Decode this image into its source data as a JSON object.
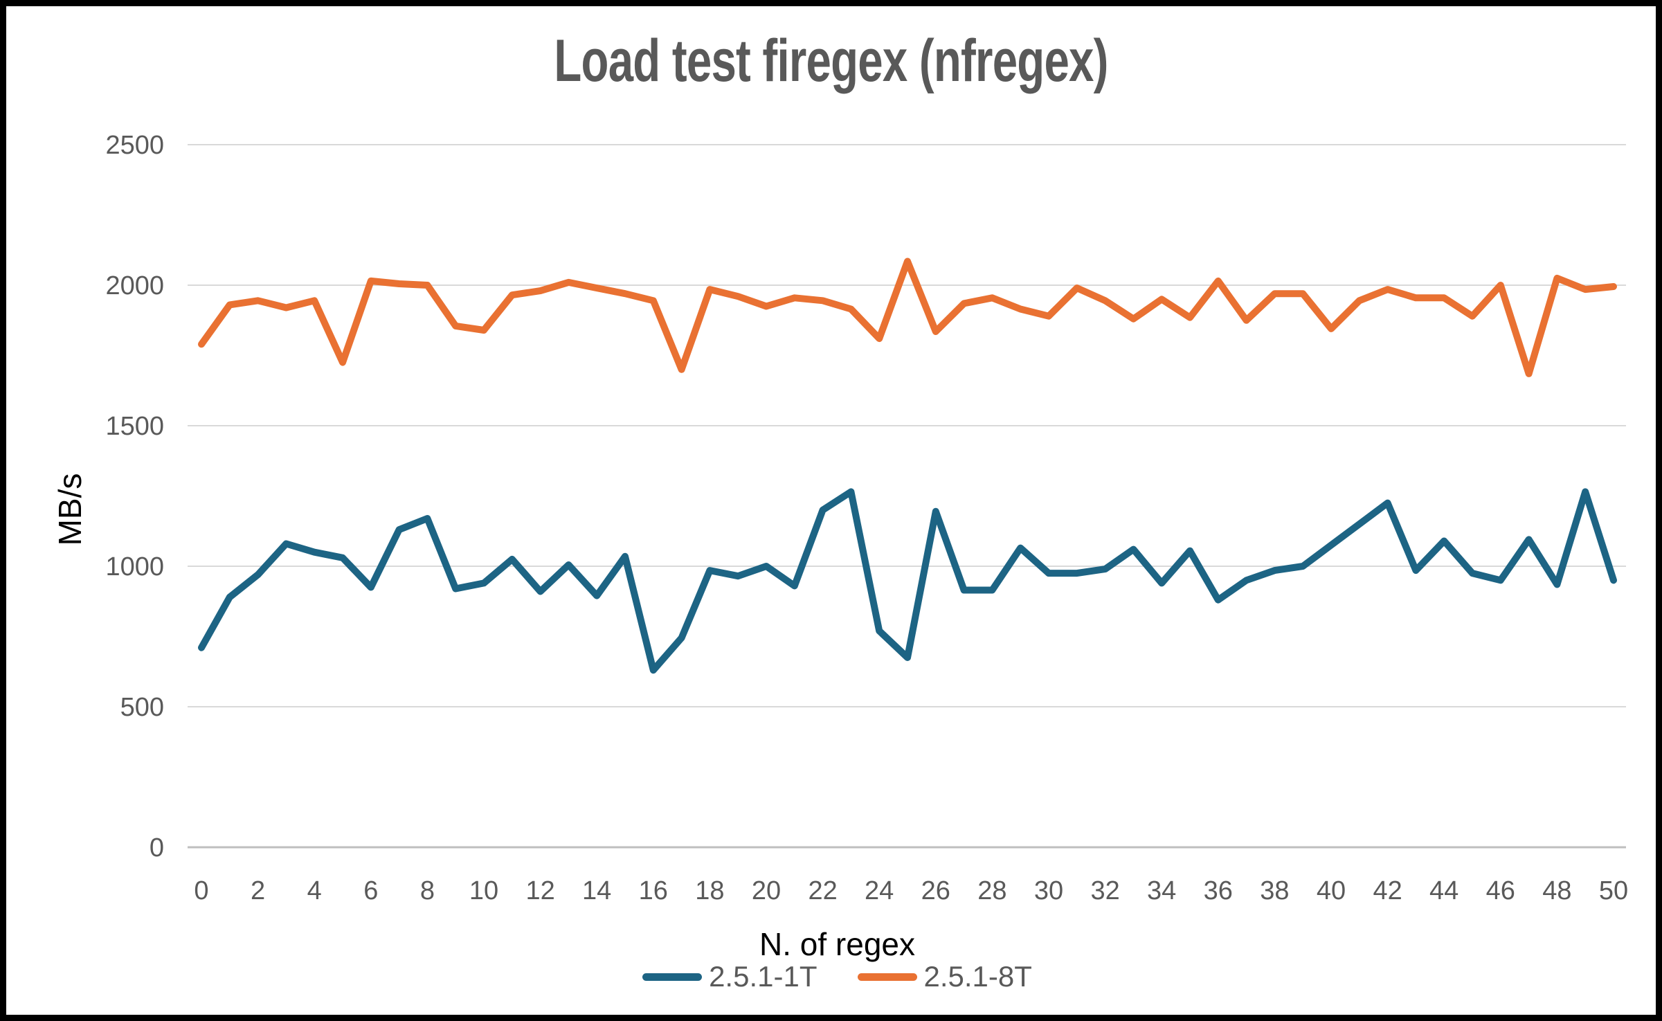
{
  "title": "Load test firegex (nfregex)",
  "colors": {
    "title_text": "#595959",
    "tick_text": "#595959",
    "axis_title_text": "#000000",
    "gridline": "#D9D9D9",
    "axis_line": "#BFBFBF",
    "frame_border": "#000000",
    "background": "#FFFFFF",
    "series_1T": "#1D6484",
    "series_8T": "#E97132"
  },
  "chart_data": {
    "type": "line",
    "title": "Load test firegex (nfregex)",
    "xlabel": "N. of regex",
    "ylabel": "MB/s",
    "xlim": [
      0,
      50
    ],
    "ylim": [
      0,
      2500
    ],
    "grid": "horizontal",
    "legend_position": "bottom",
    "y_ticks": [
      0,
      500,
      1000,
      1500,
      2000,
      2500
    ],
    "x_tick_step": 2,
    "x_tick_labels": [
      "0",
      "2",
      "4",
      "6",
      "8",
      "10",
      "12",
      "14",
      "16",
      "18",
      "20",
      "22",
      "24",
      "26",
      "28",
      "30",
      "32",
      "34",
      "36",
      "38",
      "40",
      "42",
      "44",
      "46",
      "48",
      "50"
    ],
    "x": [
      0,
      1,
      2,
      3,
      4,
      5,
      6,
      7,
      8,
      9,
      10,
      11,
      12,
      13,
      14,
      15,
      16,
      17,
      18,
      19,
      20,
      21,
      22,
      23,
      24,
      25,
      26,
      27,
      28,
      29,
      30,
      31,
      32,
      33,
      34,
      35,
      36,
      37,
      38,
      39,
      40,
      41,
      42,
      43,
      44,
      45,
      46,
      47,
      48,
      49,
      50
    ],
    "series": [
      {
        "name": "2.5.1-1T",
        "color": "#1D6484",
        "values": [
          710,
          890,
          970,
          1080,
          1050,
          1030,
          925,
          1130,
          1170,
          920,
          940,
          1025,
          910,
          1005,
          895,
          1035,
          630,
          745,
          985,
          965,
          1000,
          930,
          1200,
          1265,
          770,
          675,
          1195,
          915,
          915,
          1065,
          975,
          975,
          990,
          1060,
          940,
          1055,
          880,
          950,
          985,
          1000,
          1075,
          1150,
          1225,
          985,
          1090,
          975,
          950,
          1095,
          935,
          1265,
          950
        ]
      },
      {
        "name": "2.5.1-8T",
        "color": "#E97132",
        "values": [
          1790,
          1930,
          1945,
          1920,
          1945,
          1725,
          2015,
          2005,
          2000,
          1855,
          1840,
          1965,
          1980,
          2010,
          1990,
          1970,
          1945,
          1700,
          1985,
          1960,
          1925,
          1955,
          1945,
          1915,
          1810,
          2085,
          1835,
          1935,
          1955,
          1915,
          1890,
          1990,
          1945,
          1880,
          1950,
          1885,
          2015,
          1875,
          1970,
          1970,
          1845,
          1945,
          1985,
          1955,
          1955,
          1890,
          2000,
          1685,
          2025,
          1985,
          1995
        ]
      }
    ]
  }
}
